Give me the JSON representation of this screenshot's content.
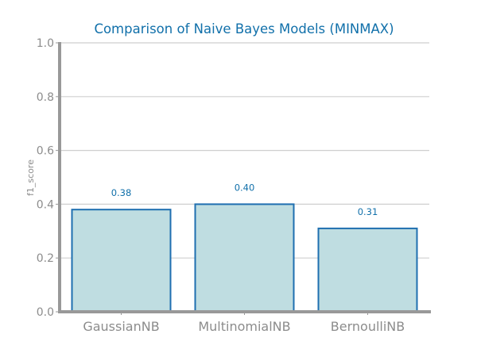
{
  "chart_data": {
    "type": "bar",
    "title": "Comparison of Naive Bayes Models (MINMAX)",
    "xlabel": "",
    "ylabel": "f1_score",
    "categories": [
      "GaussianNB",
      "MultinomialNB",
      "BernoulliNB"
    ],
    "values": [
      0.38,
      0.4,
      0.31
    ],
    "value_labels": [
      "0.38",
      "0.40",
      "0.31"
    ],
    "ylim": [
      0.0,
      1.0
    ],
    "yticks": [
      0.0,
      0.2,
      0.4,
      0.6,
      0.8,
      1.0
    ],
    "ytick_labels": [
      "0.0",
      "0.2",
      "0.4",
      "0.6",
      "0.8",
      "1.0"
    ],
    "grid": "horizontal",
    "legend": "none",
    "colors": {
      "bar_fill": "#bfdde1",
      "bar_edge": "#1f6fb0",
      "title": "#1170aa",
      "value_label": "#1170aa",
      "grid": "#cfcfcf",
      "axis": "#999999",
      "tick_label": "#8c8c8c"
    }
  }
}
